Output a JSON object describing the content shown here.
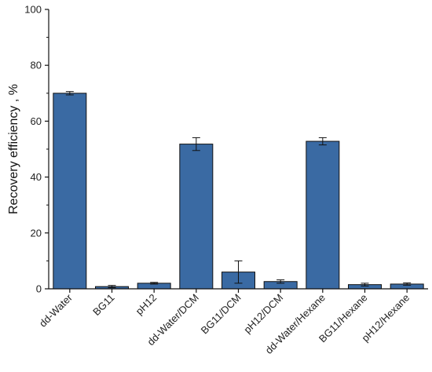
{
  "chart_data": {
    "type": "bar",
    "title": "",
    "xlabel": "",
    "ylabel": "Recovery efficiency , %",
    "ylim": [
      0,
      100
    ],
    "yticks": [
      0,
      20,
      40,
      60,
      80,
      100
    ],
    "grid": false,
    "bar_color": "#3a6aa3",
    "categories": [
      "dd-Water",
      "BG11",
      "pH12",
      "dd-Water/DCM",
      "BG11/DCM",
      "pH12/DCM",
      "dd-Water/Hexane",
      "BG11/Hexane",
      "pH12/Hexane"
    ],
    "values": [
      70.0,
      0.8,
      2.0,
      51.8,
      6.0,
      2.6,
      52.8,
      1.5,
      1.7
    ],
    "errors": [
      0.6,
      0.4,
      0.3,
      2.3,
      4.0,
      0.6,
      1.3,
      0.5,
      0.4
    ]
  }
}
